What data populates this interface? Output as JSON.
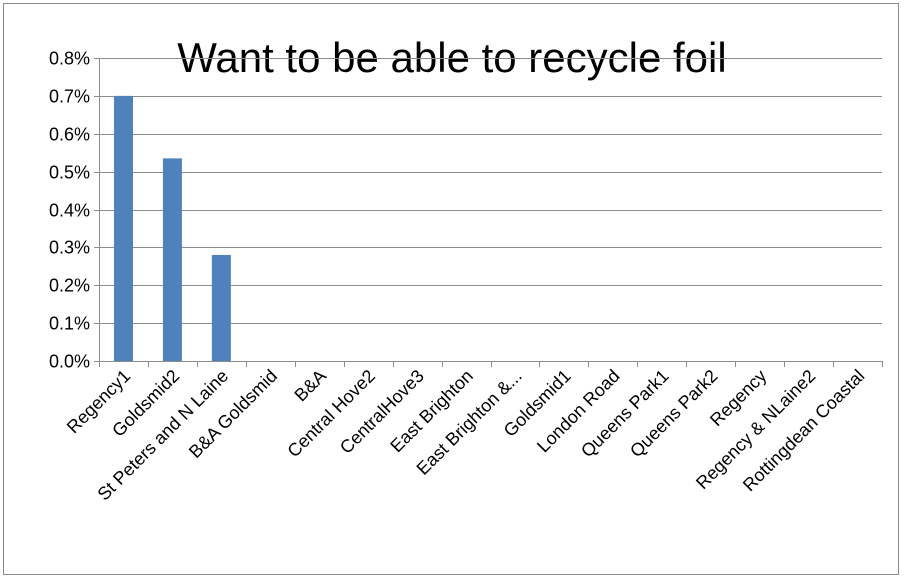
{
  "chart_data": {
    "type": "bar",
    "title": "Want to be able to recycle foil",
    "xlabel": "",
    "ylabel": "",
    "categories": [
      "Regency1",
      "Goldsmid2",
      "St Peters and N Laine",
      "B&A Goldsmid",
      "B&A",
      "Central Hove2",
      "CentralHove3",
      "East Brighton",
      "East Brighton &...",
      "Goldsmid1",
      "London Road",
      "Queens Park1",
      "Queens Park2",
      "Regency",
      "Regency & NLaine2",
      "Rottingdean Coastal"
    ],
    "values": [
      0.7,
      0.535,
      0.28,
      0,
      0,
      0,
      0,
      0,
      0,
      0,
      0,
      0,
      0,
      0,
      0,
      0
    ],
    "y_ticks": [
      "0.0%",
      "0.1%",
      "0.2%",
      "0.3%",
      "0.4%",
      "0.5%",
      "0.6%",
      "0.7%",
      "0.8%"
    ],
    "ylim": [
      0,
      0.8
    ],
    "value_unit": "%",
    "grid": true,
    "legend": "none",
    "bar_color": "#4f81bd"
  }
}
